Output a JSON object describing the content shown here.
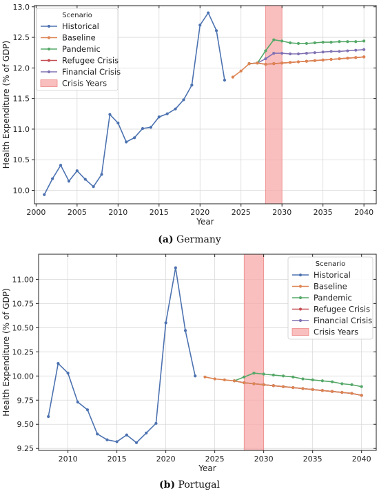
{
  "captions": [
    {
      "letter": "(a)",
      "text": "Germany"
    },
    {
      "letter": "(b)",
      "text": "Portugal"
    }
  ],
  "colors": {
    "Historical": "#4c72b0",
    "Baseline": "#dd8452",
    "Pandemic": "#55a868",
    "Refugee Crisis": "#c44e52",
    "Financial Crisis": "#8172b3",
    "Crisis Years": "#f7a8a8"
  },
  "chart_data": [
    {
      "type": "line",
      "xlabel": "Year",
      "ylabel": "Health Expenditure (% of GDP)",
      "xlim": [
        1999.8,
        2041.5
      ],
      "ylim": [
        9.78,
        13.02
      ],
      "xticks": [
        2000,
        2005,
        2010,
        2015,
        2020,
        2025,
        2030,
        2035,
        2040
      ],
      "yticks": [
        10.0,
        10.5,
        11.0,
        11.5,
        12.0,
        12.5,
        13.0
      ],
      "ytick_labels": [
        "10.0",
        "10.5",
        "11.0",
        "11.5",
        "12.0",
        "12.5",
        "13.0"
      ],
      "grid": true,
      "legend": {
        "title": "Scenario",
        "placement": "upper-left"
      },
      "crisis_years": [
        2028,
        2030
      ],
      "series": [
        {
          "name": "Historical",
          "x": [
            2001,
            2002,
            2003,
            2004,
            2005,
            2006,
            2007,
            2008,
            2009,
            2010,
            2011,
            2012,
            2013,
            2014,
            2015,
            2016,
            2017,
            2018,
            2019,
            2020,
            2021,
            2022,
            2023
          ],
          "y": [
            9.93,
            10.19,
            10.41,
            10.15,
            10.32,
            10.18,
            10.06,
            10.26,
            11.24,
            11.1,
            10.79,
            10.86,
            11.01,
            11.03,
            11.2,
            11.25,
            11.33,
            11.48,
            11.72,
            12.7,
            12.9,
            12.61,
            11.8
          ]
        },
        {
          "name": "Baseline",
          "x": [
            2024,
            2025,
            2026,
            2027,
            2028,
            2029,
            2030,
            2031,
            2032,
            2033,
            2034,
            2035,
            2036,
            2037,
            2038,
            2039,
            2040
          ],
          "y": [
            11.85,
            11.95,
            12.07,
            12.08,
            12.06,
            12.07,
            12.08,
            12.09,
            12.1,
            12.11,
            12.12,
            12.13,
            12.14,
            12.15,
            12.16,
            12.17,
            12.18
          ]
        },
        {
          "name": "Pandemic",
          "x": [
            2026,
            2027,
            2028,
            2029,
            2030,
            2031,
            2032,
            2033,
            2034,
            2035,
            2036,
            2037,
            2038,
            2039,
            2040
          ],
          "y": [
            12.07,
            12.08,
            12.28,
            12.46,
            12.44,
            12.41,
            12.4,
            12.4,
            12.41,
            12.42,
            12.42,
            12.43,
            12.43,
            12.43,
            12.44
          ]
        },
        {
          "name": "Refugee Crisis",
          "x": [
            2026,
            2027,
            2028,
            2029,
            2030,
            2031,
            2032,
            2033,
            2034,
            2035,
            2036,
            2037,
            2038,
            2039,
            2040
          ],
          "y": [
            12.07,
            12.08,
            12.06,
            12.07,
            12.08,
            12.09,
            12.1,
            12.11,
            12.12,
            12.13,
            12.14,
            12.15,
            12.16,
            12.17,
            12.18
          ]
        },
        {
          "name": "Financial Crisis",
          "x": [
            2026,
            2027,
            2028,
            2029,
            2030,
            2031,
            2032,
            2033,
            2034,
            2035,
            2036,
            2037,
            2038,
            2039,
            2040
          ],
          "y": [
            12.07,
            12.08,
            12.15,
            12.24,
            12.24,
            12.23,
            12.23,
            12.24,
            12.25,
            12.26,
            12.27,
            12.27,
            12.28,
            12.29,
            12.3
          ]
        }
      ]
    },
    {
      "type": "line",
      "xlabel": "Year",
      "ylabel": "Health Expenditure (% of GDP)",
      "xlim": [
        2007.0,
        2041.5
      ],
      "ylim": [
        9.23,
        11.26
      ],
      "xticks": [
        2010,
        2015,
        2020,
        2025,
        2030,
        2035,
        2040
      ],
      "yticks": [
        9.25,
        9.5,
        9.75,
        10.0,
        10.25,
        10.5,
        10.75,
        11.0
      ],
      "ytick_labels": [
        "9.25",
        "9.50",
        "9.75",
        "10.00",
        "10.25",
        "10.50",
        "10.75",
        "11.00"
      ],
      "grid": true,
      "legend": {
        "title": "Scenario",
        "placement": "upper-right"
      },
      "crisis_years": [
        2028,
        2030
      ],
      "series": [
        {
          "name": "Historical",
          "x": [
            2008,
            2009,
            2010,
            2011,
            2012,
            2013,
            2014,
            2015,
            2016,
            2017,
            2018,
            2019,
            2020,
            2021,
            2022,
            2023
          ],
          "y": [
            9.58,
            10.13,
            10.03,
            9.73,
            9.65,
            9.4,
            9.34,
            9.32,
            9.39,
            9.31,
            9.41,
            9.51,
            10.55,
            11.12,
            10.47,
            10.0
          ]
        },
        {
          "name": "Baseline",
          "x": [
            2024,
            2025,
            2026,
            2027,
            2028,
            2029,
            2030,
            2031,
            2032,
            2033,
            2034,
            2035,
            2036,
            2037,
            2038,
            2039,
            2040
          ],
          "y": [
            9.99,
            9.97,
            9.96,
            9.95,
            9.93,
            9.92,
            9.91,
            9.9,
            9.89,
            9.88,
            9.87,
            9.86,
            9.85,
            9.84,
            9.83,
            9.82,
            9.8
          ]
        },
        {
          "name": "Pandemic",
          "x": [
            2027,
            2028,
            2029,
            2030,
            2031,
            2032,
            2033,
            2034,
            2035,
            2036,
            2037,
            2038,
            2039,
            2040
          ],
          "y": [
            9.95,
            9.99,
            10.03,
            10.02,
            10.01,
            10.0,
            9.99,
            9.97,
            9.96,
            9.95,
            9.94,
            9.92,
            9.91,
            9.89
          ]
        },
        {
          "name": "Refugee Crisis",
          "x": [
            2027,
            2028,
            2029,
            2030,
            2031,
            2032,
            2033,
            2034,
            2035,
            2036,
            2037,
            2038,
            2039,
            2040
          ],
          "y": [
            9.95,
            9.93,
            9.92,
            9.91,
            9.9,
            9.89,
            9.88,
            9.87,
            9.86,
            9.85,
            9.84,
            9.83,
            9.82,
            9.8
          ]
        },
        {
          "name": "Financial Crisis",
          "x": [
            2027,
            2028,
            2029,
            2030,
            2031,
            2032,
            2033,
            2034,
            2035,
            2036,
            2037,
            2038,
            2039,
            2040
          ],
          "y": [
            9.95,
            9.93,
            9.92,
            9.91,
            9.9,
            9.89,
            9.88,
            9.87,
            9.86,
            9.85,
            9.84,
            9.83,
            9.82,
            9.8
          ]
        }
      ]
    }
  ]
}
